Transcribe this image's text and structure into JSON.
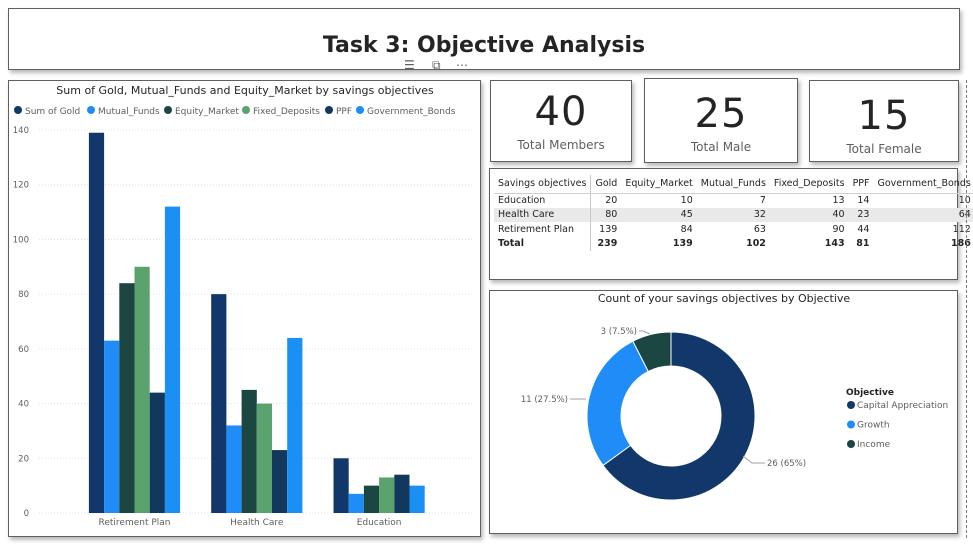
{
  "page": {
    "title": "Task 3: Objective Analysis"
  },
  "visual_header": {
    "icons": [
      "filter-icon",
      "focus-mode-icon",
      "more-options-icon"
    ]
  },
  "cards": {
    "members": {
      "value": "40",
      "label": "Total Members"
    },
    "male": {
      "value": "25",
      "label": "Total Male"
    },
    "female": {
      "value": "15",
      "label": "Total Female"
    }
  },
  "table": {
    "headers": [
      "Savings objectives",
      "Gold",
      "Equity_Market",
      "Mutual_Funds",
      "Fixed_Deposits",
      "PPF",
      "Government_Bonds"
    ],
    "rows": [
      [
        "Education",
        "20",
        "10",
        "7",
        "13",
        "14",
        "10"
      ],
      [
        "Health Care",
        "80",
        "45",
        "32",
        "40",
        "23",
        "64"
      ],
      [
        "Retirement Plan",
        "139",
        "84",
        "63",
        "90",
        "44",
        "112"
      ]
    ],
    "total": [
      "Total",
      "239",
      "139",
      "102",
      "143",
      "81",
      "186"
    ]
  },
  "chart_data": [
    {
      "type": "bar",
      "title": "Sum of Gold, Mutual_Funds and Equity_Market by savings objectives",
      "categories": [
        "Retirement Plan",
        "Health Care",
        "Education"
      ],
      "series": [
        {
          "name": "Sum of Gold",
          "color": "#12386b",
          "values": [
            139,
            80,
            20
          ]
        },
        {
          "name": "Mutual_Funds",
          "color": "#1f8cf7",
          "values": [
            63,
            32,
            7
          ]
        },
        {
          "name": "Equity_Market",
          "color": "#1b4641",
          "values": [
            84,
            45,
            10
          ]
        },
        {
          "name": "Fixed_Deposits",
          "color": "#5aa36f",
          "values": [
            90,
            40,
            13
          ]
        },
        {
          "name": "PPF",
          "color": "#13385e",
          "values": [
            44,
            23,
            14
          ]
        },
        {
          "name": "Government_Bonds",
          "color": "#1a90f5",
          "values": [
            112,
            64,
            10
          ]
        }
      ],
      "yticks": [
        "0",
        "20",
        "40",
        "60",
        "80",
        "100",
        "120",
        "140"
      ],
      "ylim": [
        0,
        140
      ],
      "grid": true,
      "legend": "top"
    },
    {
      "type": "pie",
      "title": "Count of your savings objectives by Objective",
      "legend_title": "Objective",
      "slices": [
        {
          "name": "Capital Appreciation",
          "value": 26,
          "label": "26 (65%)",
          "color": "#12386b"
        },
        {
          "name": "Growth",
          "value": 11,
          "label": "11 (27.5%)",
          "color": "#1f8cf7"
        },
        {
          "name": "Income",
          "value": 3,
          "label": "3 (7.5%)",
          "color": "#1b4641"
        }
      ],
      "legend": "right"
    }
  ]
}
